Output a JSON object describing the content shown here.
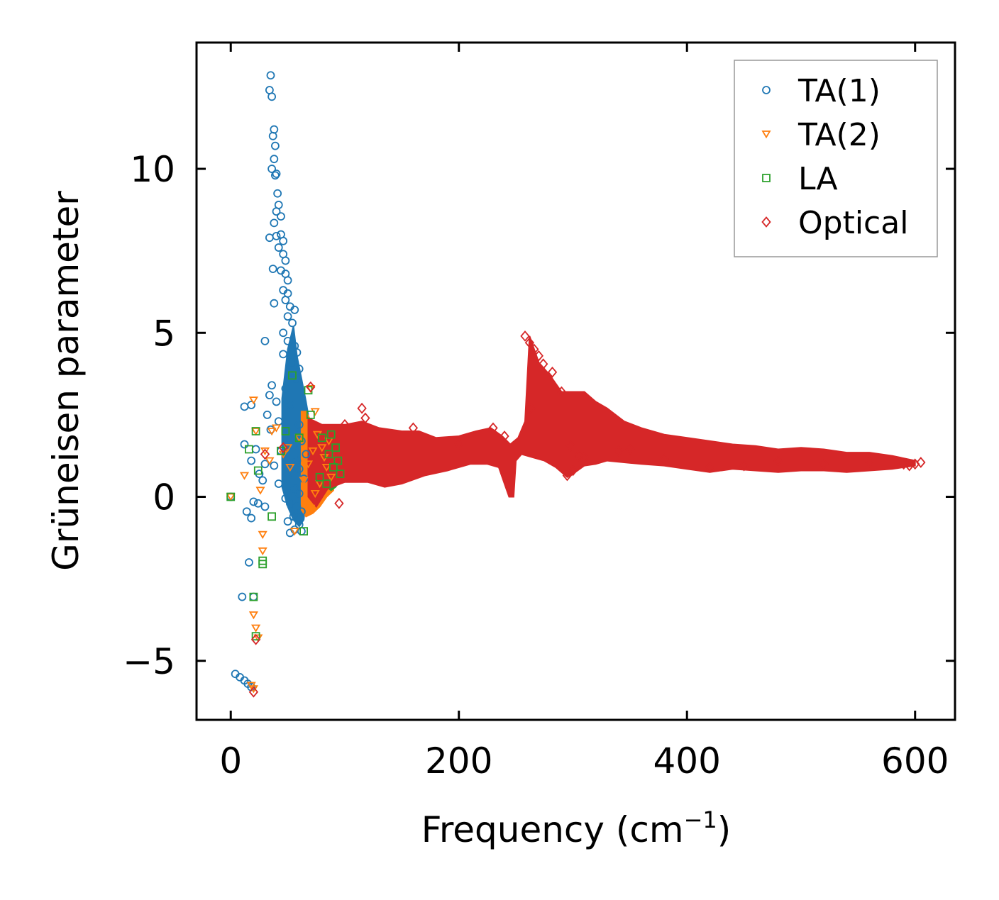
{
  "chart_data": {
    "type": "scatter",
    "title": "",
    "xlabel": "Frequency (cm",
    "xlabel_sup": "−1",
    "xlabel_close": ")",
    "ylabel": "Grüneisen parameter",
    "xlim": [
      -30,
      635
    ],
    "ylim": [
      -6.8,
      13.85
    ],
    "xticks": [
      0,
      200,
      400,
      600
    ],
    "xtick_labels": [
      "0",
      "200",
      "400",
      "600"
    ],
    "yticks": [
      -5,
      0,
      5,
      10
    ],
    "ytick_labels": [
      "−5",
      "0",
      "5",
      "10"
    ],
    "grid": false,
    "legend_position": "top-right",
    "series": [
      {
        "name": "TA(1)",
        "marker": "circle",
        "color": "#1f77b4",
        "points": [
          [
            0,
            0
          ],
          [
            4,
            -5.4
          ],
          [
            8,
            -5.5
          ],
          [
            12,
            -5.6
          ],
          [
            15,
            -5.7
          ],
          [
            18,
            -5.8
          ],
          [
            10,
            -3.05
          ],
          [
            16,
            -2.0
          ],
          [
            20,
            -3.05
          ],
          [
            12,
            2.75
          ],
          [
            18,
            2.8
          ],
          [
            12,
            1.6
          ],
          [
            22,
            1.45
          ],
          [
            18,
            1.1
          ],
          [
            25,
            0.7
          ],
          [
            30,
            1.0
          ],
          [
            28,
            0.5
          ],
          [
            14,
            -0.45
          ],
          [
            18,
            -0.65
          ],
          [
            20,
            -0.15
          ],
          [
            24,
            -0.2
          ],
          [
            30,
            -0.3
          ],
          [
            35,
            12.85
          ],
          [
            34,
            12.4
          ],
          [
            36,
            12.2
          ],
          [
            38,
            11.2
          ],
          [
            37,
            11.0
          ],
          [
            39,
            10.7
          ],
          [
            38,
            10.3
          ],
          [
            36,
            10.0
          ],
          [
            40,
            9.85
          ],
          [
            39,
            9.8
          ],
          [
            41,
            9.25
          ],
          [
            42,
            8.9
          ],
          [
            40,
            8.7
          ],
          [
            44,
            8.55
          ],
          [
            38,
            8.35
          ],
          [
            34,
            7.9
          ],
          [
            40,
            7.95
          ],
          [
            44,
            8.0
          ],
          [
            46,
            7.8
          ],
          [
            42,
            7.6
          ],
          [
            46,
            7.4
          ],
          [
            48,
            7.2
          ],
          [
            37,
            6.95
          ],
          [
            44,
            6.9
          ],
          [
            48,
            6.8
          ],
          [
            50,
            6.6
          ],
          [
            46,
            6.3
          ],
          [
            50,
            6.2
          ],
          [
            48,
            6.0
          ],
          [
            38,
            5.9
          ],
          [
            52,
            5.8
          ],
          [
            56,
            5.7
          ],
          [
            50,
            5.5
          ],
          [
            54,
            5.3
          ],
          [
            46,
            5.0
          ],
          [
            30,
            4.75
          ],
          [
            50,
            4.75
          ],
          [
            56,
            4.6
          ],
          [
            58,
            4.4
          ],
          [
            46,
            4.35
          ],
          [
            54,
            4.1
          ],
          [
            60,
            3.9
          ],
          [
            58,
            3.6
          ],
          [
            36,
            3.4
          ],
          [
            48,
            3.3
          ],
          [
            34,
            3.1
          ],
          [
            40,
            2.9
          ],
          [
            52,
            2.8
          ],
          [
            32,
            2.5
          ],
          [
            42,
            2.3
          ],
          [
            60,
            2.2
          ],
          [
            35,
            2.05
          ],
          [
            48,
            1.95
          ],
          [
            62,
            1.7
          ],
          [
            55,
            1.55
          ],
          [
            44,
            1.4
          ],
          [
            66,
            1.3
          ],
          [
            58,
            1.1
          ],
          [
            38,
            0.95
          ],
          [
            60,
            0.85
          ],
          [
            50,
            0.7
          ],
          [
            64,
            0.55
          ],
          [
            42,
            0.4
          ],
          [
            56,
            0.25
          ],
          [
            60,
            0.1
          ],
          [
            48,
            -0.05
          ],
          [
            52,
            -0.2
          ],
          [
            58,
            -0.3
          ],
          [
            62,
            -0.45
          ],
          [
            55,
            -0.6
          ],
          [
            50,
            -0.75
          ],
          [
            60,
            -0.85
          ],
          [
            56,
            -1.0
          ],
          [
            52,
            -1.1
          ],
          [
            62,
            -1.05
          ]
        ]
      },
      {
        "name": "TA(2)",
        "marker": "triangle-down",
        "color": "#ff7f0e",
        "points": [
          [
            0,
            0
          ],
          [
            12,
            0.65
          ],
          [
            20,
            2.95
          ],
          [
            22,
            2.0
          ],
          [
            30,
            1.4
          ],
          [
            28,
            -1.15
          ],
          [
            28,
            -1.65
          ],
          [
            20,
            -3.6
          ],
          [
            22,
            -4.0
          ],
          [
            24,
            -4.3
          ],
          [
            20,
            -5.85
          ],
          [
            18,
            -5.75
          ],
          [
            26,
            0.2
          ],
          [
            34,
            1.1
          ],
          [
            36,
            2.0
          ],
          [
            40,
            2.1
          ],
          [
            46,
            1.3
          ],
          [
            52,
            0.9
          ],
          [
            70,
            3.3
          ],
          [
            74,
            2.6
          ],
          [
            76,
            1.9
          ],
          [
            80,
            1.5
          ],
          [
            84,
            0.9
          ],
          [
            88,
            0.6
          ],
          [
            70,
            -0.35
          ],
          [
            74,
            0.1
          ],
          [
            78,
            0.4
          ],
          [
            82,
            1.2
          ],
          [
            86,
            1.7
          ],
          [
            68,
            1.0
          ],
          [
            72,
            1.4
          ],
          [
            64,
            0.5
          ],
          [
            60,
            1.8
          ],
          [
            56,
            -1.05
          ],
          [
            50,
            1.5
          ]
        ]
      },
      {
        "name": "LA",
        "marker": "square",
        "color": "#2ca02c",
        "points": [
          [
            0,
            0
          ],
          [
            16,
            1.45
          ],
          [
            22,
            2.0
          ],
          [
            24,
            0.8
          ],
          [
            28,
            -1.95
          ],
          [
            28,
            -2.05
          ],
          [
            20,
            -3.05
          ],
          [
            22,
            -4.25
          ],
          [
            36,
            -0.6
          ],
          [
            44,
            1.4
          ],
          [
            48,
            2.0
          ],
          [
            54,
            3.7
          ],
          [
            60,
            1.8
          ],
          [
            64,
            -1.05
          ],
          [
            68,
            3.25
          ],
          [
            70,
            2.5
          ],
          [
            80,
            1.8
          ],
          [
            86,
            1.3
          ],
          [
            90,
            0.9
          ],
          [
            92,
            1.5
          ],
          [
            94,
            1.1
          ],
          [
            96,
            0.7
          ],
          [
            84,
            0.4
          ],
          [
            88,
            1.9
          ],
          [
            78,
            0.6
          ]
        ]
      },
      {
        "name": "Optical",
        "marker": "diamond",
        "color": "#d62728",
        "points": [
          [
            20,
            -5.95
          ],
          [
            22,
            -4.35
          ],
          [
            30,
            1.3
          ],
          [
            46,
            1.5
          ],
          [
            70,
            3.35
          ],
          [
            95,
            -0.2
          ],
          [
            100,
            2.2
          ],
          [
            115,
            2.7
          ],
          [
            118,
            2.4
          ],
          [
            160,
            2.1
          ],
          [
            200,
            1.6
          ],
          [
            230,
            2.1
          ],
          [
            240,
            1.85
          ],
          [
            263,
            2.7
          ],
          [
            258,
            4.9
          ],
          [
            262,
            4.7
          ],
          [
            266,
            4.5
          ],
          [
            270,
            4.3
          ],
          [
            274,
            4.05
          ],
          [
            282,
            3.8
          ],
          [
            290,
            3.2
          ],
          [
            298,
            1.55
          ],
          [
            305,
            1.25
          ],
          [
            300,
            0.8
          ],
          [
            295,
            0.65
          ],
          [
            310,
            1.2
          ],
          [
            340,
            1.4
          ],
          [
            350,
            1.45
          ],
          [
            380,
            1.15
          ],
          [
            420,
            0.9
          ],
          [
            450,
            0.95
          ],
          [
            480,
            1.1
          ],
          [
            520,
            1.0
          ],
          [
            560,
            1.05
          ],
          [
            590,
            1.0
          ],
          [
            595,
            0.95
          ],
          [
            600,
            1.0
          ],
          [
            605,
            1.05
          ]
        ]
      }
    ],
    "dense_bands": [
      {
        "series": "TA(1)",
        "color": "#1f77b4",
        "upper": [
          [
            45,
            3.0
          ],
          [
            50,
            4.5
          ],
          [
            55,
            5.2
          ],
          [
            58,
            4.3
          ],
          [
            62,
            3.6
          ],
          [
            66,
            2.9
          ],
          [
            68,
            2.5
          ]
        ],
        "lower": [
          [
            68,
            0.5
          ],
          [
            64,
            -0.7
          ],
          [
            60,
            -0.9
          ],
          [
            55,
            -0.7
          ],
          [
            50,
            -0.3
          ],
          [
            45,
            0.3
          ]
        ]
      },
      {
        "series": "TA(2)",
        "color": "#ff7f0e",
        "upper": [
          [
            62,
            2.6
          ],
          [
            66,
            2.6
          ],
          [
            72,
            2.2
          ],
          [
            78,
            1.9
          ],
          [
            84,
            1.9
          ],
          [
            90,
            1.85
          ]
        ],
        "lower": [
          [
            90,
            0.2
          ],
          [
            84,
            0.0
          ],
          [
            78,
            -0.3
          ],
          [
            72,
            -0.5
          ],
          [
            66,
            -0.6
          ],
          [
            62,
            -0.4
          ]
        ]
      },
      {
        "series": "LA",
        "color": "#2ca02c",
        "upper": [
          [
            84,
            1.9
          ],
          [
            88,
            1.9
          ],
          [
            92,
            1.85
          ],
          [
            96,
            1.6
          ]
        ],
        "lower": [
          [
            96,
            0.5
          ],
          [
            92,
            0.3
          ],
          [
            88,
            0.2
          ],
          [
            84,
            0.3
          ]
        ]
      },
      {
        "series": "Optical",
        "color": "#d62728",
        "upper": [
          [
            68,
            2.4
          ],
          [
            80,
            2.2
          ],
          [
            100,
            2.2
          ],
          [
            115,
            2.3
          ],
          [
            130,
            2.1
          ],
          [
            150,
            2.0
          ],
          [
            165,
            2.0
          ],
          [
            180,
            1.8
          ],
          [
            200,
            1.85
          ],
          [
            215,
            2.0
          ],
          [
            228,
            2.1
          ],
          [
            238,
            1.85
          ],
          [
            245,
            1.6
          ],
          [
            252,
            1.8
          ],
          [
            258,
            2.3
          ],
          [
            262,
            4.9
          ],
          [
            270,
            4.1
          ],
          [
            280,
            3.7
          ],
          [
            290,
            3.2
          ],
          [
            300,
            3.2
          ],
          [
            310,
            3.2
          ],
          [
            320,
            2.9
          ],
          [
            330,
            2.7
          ],
          [
            345,
            2.3
          ],
          [
            360,
            2.1
          ],
          [
            380,
            1.9
          ],
          [
            400,
            1.8
          ],
          [
            420,
            1.7
          ],
          [
            440,
            1.6
          ],
          [
            460,
            1.55
          ],
          [
            480,
            1.45
          ],
          [
            500,
            1.5
          ],
          [
            520,
            1.45
          ],
          [
            540,
            1.35
          ],
          [
            560,
            1.35
          ],
          [
            580,
            1.25
          ],
          [
            600,
            1.1
          ]
        ],
        "lower": [
          [
            600,
            0.95
          ],
          [
            580,
            0.85
          ],
          [
            560,
            0.8
          ],
          [
            540,
            0.75
          ],
          [
            520,
            0.8
          ],
          [
            500,
            0.8
          ],
          [
            480,
            0.75
          ],
          [
            460,
            0.8
          ],
          [
            440,
            0.85
          ],
          [
            420,
            0.75
          ],
          [
            400,
            0.85
          ],
          [
            380,
            0.95
          ],
          [
            360,
            1.0
          ],
          [
            345,
            1.05
          ],
          [
            330,
            1.1
          ],
          [
            320,
            1.0
          ],
          [
            310,
            0.95
          ],
          [
            300,
            0.7
          ],
          [
            295,
            0.6
          ],
          [
            285,
            0.9
          ],
          [
            275,
            1.1
          ],
          [
            265,
            1.2
          ],
          [
            255,
            1.3
          ],
          [
            250,
            1.1
          ],
          [
            248,
            0.0
          ],
          [
            244,
            0.0
          ],
          [
            240,
            0.4
          ],
          [
            235,
            0.9
          ],
          [
            225,
            1.0
          ],
          [
            210,
            1.0
          ],
          [
            190,
            0.8
          ],
          [
            170,
            0.65
          ],
          [
            150,
            0.4
          ],
          [
            135,
            0.3
          ],
          [
            120,
            0.45
          ],
          [
            100,
            0.45
          ],
          [
            85,
            0.25
          ],
          [
            75,
            -0.3
          ],
          [
            68,
            0.0
          ]
        ]
      }
    ]
  }
}
